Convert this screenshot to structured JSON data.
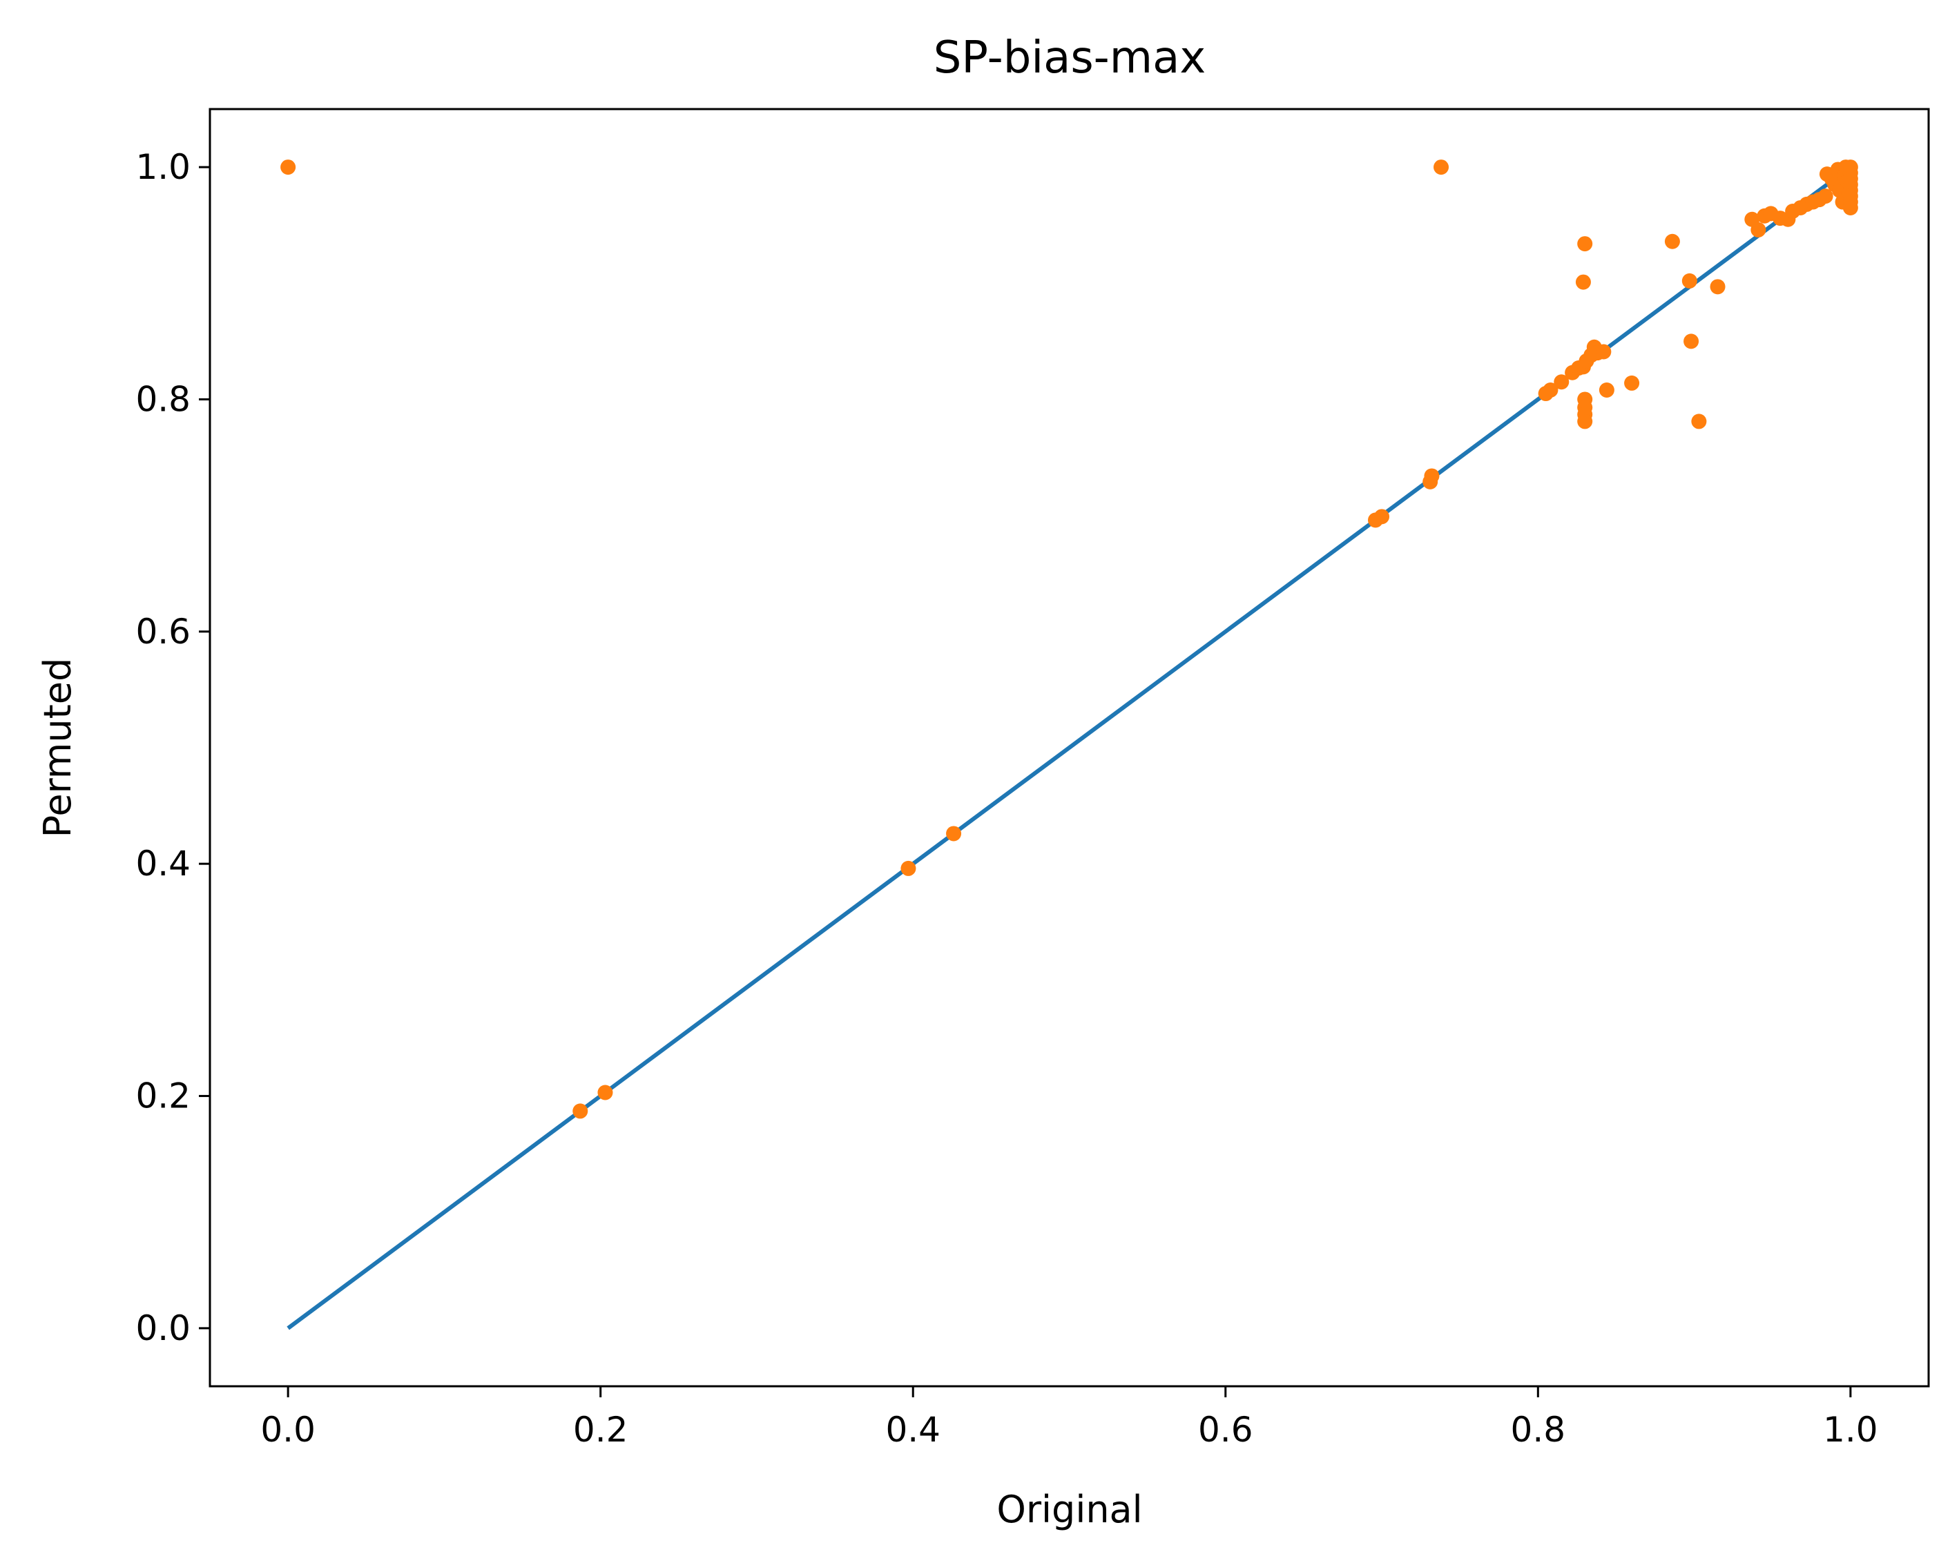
{
  "chart_data": {
    "type": "scatter",
    "title": "SP-bias-max",
    "xlabel": "Original",
    "ylabel": "Permuted",
    "xlim": [
      -0.05,
      1.05
    ],
    "ylim": [
      -0.05,
      1.05
    ],
    "xticks": [
      "0.0",
      "0.2",
      "0.4",
      "0.6",
      "0.8",
      "1.0"
    ],
    "yticks": [
      "0.0",
      "0.2",
      "0.4",
      "0.6",
      "0.8",
      "1.0"
    ],
    "grid": false,
    "colors": {
      "line": "#1f77b4",
      "points": "#ff7f0e"
    },
    "reference_line": {
      "x": [
        0.0,
        1.0
      ],
      "y": [
        0.0,
        1.0
      ]
    },
    "points": [
      [
        0.0,
        1.0
      ],
      [
        0.738,
        1.0
      ],
      [
        0.187,
        0.187
      ],
      [
        0.203,
        0.203
      ],
      [
        0.397,
        0.396
      ],
      [
        0.426,
        0.426
      ],
      [
        0.696,
        0.696
      ],
      [
        0.7,
        0.699
      ],
      [
        0.731,
        0.729
      ],
      [
        0.732,
        0.734
      ],
      [
        0.805,
        0.805
      ],
      [
        0.808,
        0.808
      ],
      [
        0.815,
        0.815
      ],
      [
        0.822,
        0.823
      ],
      [
        0.826,
        0.827
      ],
      [
        0.829,
        0.828
      ],
      [
        0.831,
        0.833
      ],
      [
        0.834,
        0.838
      ],
      [
        0.836,
        0.845
      ],
      [
        0.838,
        0.84
      ],
      [
        0.842,
        0.841
      ],
      [
        0.83,
        0.934
      ],
      [
        0.829,
        0.901
      ],
      [
        0.83,
        0.8
      ],
      [
        0.83,
        0.793
      ],
      [
        0.83,
        0.787
      ],
      [
        0.83,
        0.781
      ],
      [
        0.844,
        0.808
      ],
      [
        0.86,
        0.814
      ],
      [
        0.886,
        0.936
      ],
      [
        0.897,
        0.902
      ],
      [
        0.898,
        0.85
      ],
      [
        0.903,
        0.781
      ],
      [
        0.915,
        0.897
      ],
      [
        0.937,
        0.955
      ],
      [
        0.941,
        0.946
      ],
      [
        0.945,
        0.958
      ],
      [
        0.949,
        0.96
      ],
      [
        0.955,
        0.956
      ],
      [
        0.96,
        0.955
      ],
      [
        0.963,
        0.962
      ],
      [
        0.968,
        0.965
      ],
      [
        0.972,
        0.968
      ],
      [
        0.976,
        0.97
      ],
      [
        0.98,
        0.972
      ],
      [
        0.984,
        0.975
      ],
      [
        0.985,
        0.994
      ],
      [
        0.988,
        0.99
      ],
      [
        0.99,
        0.985
      ],
      [
        0.992,
        0.998
      ],
      [
        0.993,
        0.98
      ],
      [
        0.995,
        0.97
      ],
      [
        0.996,
        0.993
      ],
      [
        0.997,
        1.0
      ],
      [
        0.998,
        0.988
      ],
      [
        0.999,
        0.978
      ],
      [
        1.0,
        1.0
      ],
      [
        1.0,
        0.995
      ],
      [
        1.0,
        0.99
      ],
      [
        1.0,
        0.985
      ],
      [
        1.0,
        0.98
      ],
      [
        1.0,
        0.975
      ],
      [
        1.0,
        0.97
      ],
      [
        1.0,
        0.965
      ]
    ]
  }
}
